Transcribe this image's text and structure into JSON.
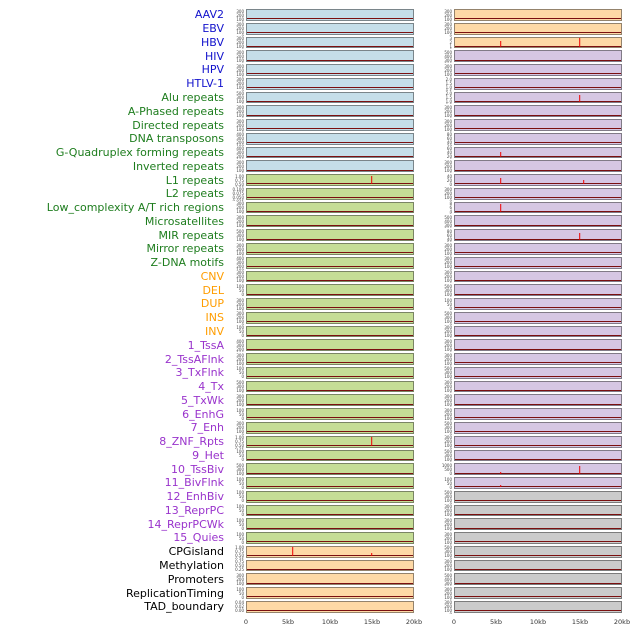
{
  "chart_data": {
    "type": "line",
    "title": "",
    "x_axis": {
      "range_kb": [
        0,
        20
      ],
      "ticks": [
        "0",
        "5kb",
        "10kb",
        "15kb",
        "20kb"
      ]
    },
    "default_yticks": [
      "300",
      "200",
      "100",
      "0"
    ],
    "legend_position": "none",
    "grid": false,
    "label_colors": {
      "virus": "#1212cc",
      "repeat": "#1e7d1e",
      "sv": "#ff9d00",
      "chromhmm": "#9933cc",
      "other": "#000000"
    },
    "panel_colors": {
      "blue": "#c5dee9",
      "green": "#c5dd96",
      "purple": "#d6c7e3",
      "orange": "#fed9a6",
      "gray": "#cbcbcb"
    },
    "spike_color": "#ee0000",
    "baseline_color": "#7b1010",
    "rows": [
      {
        "label": "AAV2",
        "group": "virus",
        "left": {
          "bg": "blue"
        },
        "right": {
          "bg": "orange"
        }
      },
      {
        "label": "EBV",
        "group": "virus",
        "left": {
          "bg": "blue"
        },
        "right": {
          "bg": "orange"
        }
      },
      {
        "label": "HBV",
        "group": "virus",
        "left": {
          "bg": "blue"
        },
        "right": {
          "bg": "orange",
          "yticks": [
            "3",
            "2",
            "1",
            "0"
          ],
          "spikes": [
            {
              "x_kb": 5.5,
              "h": 0.55
            },
            {
              "x_kb": 15,
              "h": 0.9
            }
          ]
        }
      },
      {
        "label": "HIV",
        "group": "virus",
        "left": {
          "bg": "blue"
        },
        "right": {
          "bg": "purple",
          "yticks": [
            "500",
            "400",
            "300",
            "200",
            "100",
            "0"
          ]
        }
      },
      {
        "label": "HPV",
        "group": "virus",
        "left": {
          "bg": "blue"
        },
        "right": {
          "bg": "purple"
        }
      },
      {
        "label": "HTLV-1",
        "group": "virus",
        "left": {
          "bg": "blue"
        },
        "right": {
          "bg": "purple",
          "yticks": [
            "2.0",
            "1.5",
            "1.0",
            "0.5",
            "0.0"
          ]
        }
      },
      {
        "label": "Alu repeats",
        "group": "repeat",
        "left": {
          "bg": "blue",
          "yticks": [
            "500",
            "300",
            "100",
            "0"
          ]
        },
        "right": {
          "bg": "purple",
          "yticks": [
            "2.0",
            "1.5",
            "1.0",
            "0.5",
            "0.0"
          ],
          "spikes": [
            {
              "x_kb": 15,
              "h": 0.75
            }
          ]
        }
      },
      {
        "label": "A-Phased repeats",
        "group": "repeat",
        "left": {
          "bg": "blue"
        },
        "right": {
          "bg": "purple"
        }
      },
      {
        "label": "Directed repeats",
        "group": "repeat",
        "left": {
          "bg": "blue"
        },
        "right": {
          "bg": "purple",
          "yticks": [
            "300",
            "200",
            "100",
            "0"
          ]
        }
      },
      {
        "label": "DNA transposons",
        "group": "repeat",
        "left": {
          "bg": "blue",
          "yticks": [
            "400",
            "300",
            "200",
            "100",
            "0"
          ]
        },
        "right": {
          "bg": "purple",
          "yticks": [
            "80",
            "60",
            "40",
            "20",
            "0"
          ]
        }
      },
      {
        "label": "G-Quadruplex forming repeats",
        "group": "repeat",
        "left": {
          "bg": "blue",
          "yticks": [
            "400",
            "300",
            "200",
            "100",
            "0"
          ]
        },
        "right": {
          "bg": "purple",
          "yticks": [
            "60",
            "40",
            "20",
            "0"
          ],
          "spikes": [
            {
              "x_kb": 5.5,
              "h": 0.5
            }
          ]
        }
      },
      {
        "label": "Inverted repeats",
        "group": "repeat",
        "left": {
          "bg": "blue"
        },
        "right": {
          "bg": "purple"
        }
      },
      {
        "label": "L1 repeats",
        "group": "repeat",
        "left": {
          "bg": "green",
          "yticks": [
            "1.00",
            "0.75",
            "0.50",
            "0.25",
            "0.00"
          ],
          "spikes": [
            {
              "x_kb": 15,
              "h": 0.85
            }
          ]
        },
        "right": {
          "bg": "purple",
          "yticks": [
            "40",
            "20",
            "0"
          ],
          "spikes": [
            {
              "x_kb": 5.5,
              "h": 0.7
            },
            {
              "x_kb": 15.5,
              "h": 0.45
            }
          ]
        }
      },
      {
        "label": "L2 repeats",
        "group": "repeat",
        "left": {
          "bg": "green",
          "yticks": [
            "0.100",
            "0.075",
            "0.050",
            "0.025",
            "0.000"
          ]
        },
        "right": {
          "bg": "purple"
        }
      },
      {
        "label": "Low_complexity A/T rich regions",
        "group": "repeat",
        "left": {
          "bg": "green"
        },
        "right": {
          "bg": "purple",
          "yticks": [
            "8",
            "6",
            "4",
            "2",
            "0"
          ],
          "spikes": [
            {
              "x_kb": 5.5,
              "h": 0.8
            }
          ]
        }
      },
      {
        "label": "Microsatellites",
        "group": "repeat",
        "left": {
          "bg": "green"
        },
        "right": {
          "bg": "purple",
          "yticks": [
            "500",
            "400",
            "300",
            "200",
            "100",
            "0"
          ]
        }
      },
      {
        "label": "MIR repeats",
        "group": "repeat",
        "left": {
          "bg": "green",
          "yticks": [
            "500",
            "300",
            "100",
            "0"
          ]
        },
        "right": {
          "bg": "purple",
          "yticks": [
            "80",
            "60",
            "40",
            "20",
            "0"
          ],
          "spikes": [
            {
              "x_kb": 15,
              "h": 0.65
            }
          ]
        }
      },
      {
        "label": "Mirror repeats",
        "group": "repeat",
        "left": {
          "bg": "green"
        },
        "right": {
          "bg": "purple"
        }
      },
      {
        "label": "Z-DNA motifs",
        "group": "repeat",
        "left": {
          "bg": "green",
          "yticks": [
            "400",
            "300",
            "200",
            "100",
            "0"
          ]
        },
        "right": {
          "bg": "purple",
          "yticks": [
            "300",
            "200",
            "100",
            "0"
          ]
        }
      },
      {
        "label": "CNV",
        "group": "sv",
        "left": {
          "bg": "green"
        },
        "right": {
          "bg": "purple"
        }
      },
      {
        "label": "DEL",
        "group": "sv",
        "left": {
          "bg": "green",
          "yticks": [
            "100",
            "50",
            "0"
          ]
        },
        "right": {
          "bg": "purple",
          "yticks": [
            "500",
            "300",
            "100",
            "0"
          ]
        }
      },
      {
        "label": "DUP",
        "group": "sv",
        "left": {
          "bg": "green",
          "yticks": [
            "300",
            "200",
            "100",
            "0"
          ]
        },
        "right": {
          "bg": "purple",
          "yticks": [
            "100",
            "50",
            "0"
          ]
        }
      },
      {
        "label": "INS",
        "group": "sv",
        "left": {
          "bg": "green"
        },
        "right": {
          "bg": "purple",
          "yticks": [
            "500",
            "300",
            "100",
            "0"
          ]
        }
      },
      {
        "label": "INV",
        "group": "sv",
        "left": {
          "bg": "green",
          "yticks": [
            "100",
            "50",
            "0"
          ]
        },
        "right": {
          "bg": "purple"
        }
      },
      {
        "label": "1_TssA",
        "group": "chromhmm",
        "left": {
          "bg": "green",
          "yticks": [
            "400",
            "300",
            "200",
            "100",
            "0"
          ]
        },
        "right": {
          "bg": "purple",
          "yticks": [
            "300",
            "200",
            "100",
            "0"
          ]
        }
      },
      {
        "label": "2_TssAFlnk",
        "group": "chromhmm",
        "left": {
          "bg": "green"
        },
        "right": {
          "bg": "purple"
        }
      },
      {
        "label": "3_TxFlnk",
        "group": "chromhmm",
        "left": {
          "bg": "green",
          "yticks": [
            "100",
            "50",
            "0"
          ]
        },
        "right": {
          "bg": "purple",
          "yticks": [
            "500",
            "300",
            "100",
            "0"
          ]
        }
      },
      {
        "label": "4_Tx",
        "group": "chromhmm",
        "left": {
          "bg": "green",
          "yticks": [
            "500",
            "300",
            "100",
            "0"
          ]
        },
        "right": {
          "bg": "purple"
        }
      },
      {
        "label": "5_TxWk",
        "group": "chromhmm",
        "left": {
          "bg": "green"
        },
        "right": {
          "bg": "purple",
          "yticks": [
            "300",
            "200",
            "100",
            "0"
          ]
        }
      },
      {
        "label": "6_EnhG",
        "group": "chromhmm",
        "left": {
          "bg": "green",
          "yticks": [
            "100",
            "50",
            "0"
          ]
        },
        "right": {
          "bg": "purple"
        }
      },
      {
        "label": "7_Enh",
        "group": "chromhmm",
        "left": {
          "bg": "green"
        },
        "right": {
          "bg": "purple",
          "yticks": [
            "500",
            "300",
            "100",
            "0"
          ]
        }
      },
      {
        "label": "8_ZNF_Rpts",
        "group": "chromhmm",
        "left": {
          "bg": "green",
          "yticks": [
            "1.00",
            "0.75",
            "0.50",
            "0.25",
            "0.00"
          ],
          "spikes": [
            {
              "x_kb": 15,
              "h": 0.9
            }
          ]
        },
        "right": {
          "bg": "purple"
        }
      },
      {
        "label": "9_Het",
        "group": "chromhmm",
        "left": {
          "bg": "green",
          "yticks": [
            "100",
            "50",
            "0"
          ]
        },
        "right": {
          "bg": "purple",
          "yticks": [
            "500",
            "300",
            "100",
            "0"
          ]
        }
      },
      {
        "label": "10_TssBiv",
        "group": "chromhmm",
        "left": {
          "bg": "green",
          "yticks": [
            "500",
            "300",
            "100",
            "0"
          ]
        },
        "right": {
          "bg": "purple",
          "yticks": [
            "1000",
            "500",
            "0"
          ],
          "spikes": [
            {
              "x_kb": 5.5,
              "h": 0.15
            },
            {
              "x_kb": 15,
              "h": 0.8
            }
          ]
        }
      },
      {
        "label": "11_BivFlnk",
        "group": "chromhmm",
        "left": {
          "bg": "green",
          "yticks": [
            "100",
            "50",
            "0"
          ]
        },
        "right": {
          "bg": "purple",
          "yticks": [
            "100",
            "50",
            "0"
          ],
          "spikes": [
            {
              "x_kb": 5.5,
              "h": 0.25
            }
          ]
        }
      },
      {
        "label": "12_EnhBiv",
        "group": "chromhmm",
        "left": {
          "bg": "green",
          "yticks": [
            "100",
            "50",
            "0"
          ]
        },
        "right": {
          "bg": "gray",
          "yticks": [
            "500",
            "300",
            "100",
            "0"
          ]
        }
      },
      {
        "label": "13_ReprPC",
        "group": "chromhmm",
        "left": {
          "bg": "green",
          "yticks": [
            "100",
            "50",
            "0"
          ]
        },
        "right": {
          "bg": "gray"
        }
      },
      {
        "label": "14_ReprPCWk",
        "group": "chromhmm",
        "left": {
          "bg": "green",
          "yticks": [
            "100",
            "50",
            "0"
          ]
        },
        "right": {
          "bg": "gray",
          "yticks": [
            "300",
            "200",
            "100",
            "0"
          ]
        }
      },
      {
        "label": "15_Quies",
        "group": "chromhmm",
        "left": {
          "bg": "green",
          "yticks": [
            "100",
            "50",
            "0"
          ]
        },
        "right": {
          "bg": "gray"
        }
      },
      {
        "label": "CPGisland",
        "group": "other",
        "left": {
          "bg": "orange",
          "yticks": [
            "1.00",
            "0.75",
            "0.50",
            "0.25",
            "0.00"
          ],
          "spikes": [
            {
              "x_kb": 5.5,
              "h": 0.95
            },
            {
              "x_kb": 15,
              "h": 0.3
            }
          ]
        },
        "right": {
          "bg": "gray",
          "yticks": [
            "500",
            "300",
            "100",
            "0"
          ]
        }
      },
      {
        "label": "Methylation",
        "group": "other",
        "left": {
          "bg": "orange",
          "yticks": [
            "0.75",
            "0.50",
            "0.25"
          ]
        },
        "right": {
          "bg": "gray"
        }
      },
      {
        "label": "Promoters",
        "group": "other",
        "left": {
          "bg": "orange"
        },
        "right": {
          "bg": "gray",
          "yticks": [
            "500",
            "400",
            "300",
            "200",
            "100",
            "0"
          ]
        }
      },
      {
        "label": "ReplicationTiming",
        "group": "other",
        "left": {
          "bg": "orange",
          "yticks": [
            "100",
            "50",
            "0"
          ]
        },
        "right": {
          "bg": "gray"
        }
      },
      {
        "label": "TAD_boundary",
        "group": "other",
        "left": {
          "bg": "orange",
          "yticks": [
            "0.04",
            "0.02",
            "0.00"
          ]
        },
        "right": {
          "bg": "gray",
          "yticks": [
            "300",
            "200",
            "100",
            "0"
          ]
        }
      }
    ]
  }
}
